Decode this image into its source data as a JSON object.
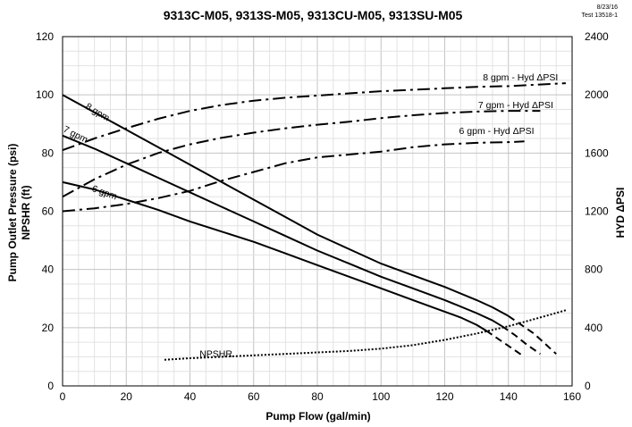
{
  "chart_data": {
    "type": "line",
    "title": "9313C-M05, 9313S-M05, 9313CU-M05, 9313SU-M05",
    "note_date": "8/23/16",
    "note_test": "Test 13518-1",
    "xlabel": "Pump Flow (gal/min)",
    "ylabel_left_1": "Pump Outlet Pressure (psi)",
    "ylabel_left_2": "NPSHR (ft)",
    "ylabel_right": "HYD ΔPSI",
    "xlim": [
      0,
      160
    ],
    "ylim_left": [
      0,
      120
    ],
    "ylim_right": [
      0,
      2400
    ],
    "xticks": [
      0,
      20,
      40,
      60,
      80,
      100,
      120,
      140,
      160
    ],
    "yticks_left": [
      0,
      20,
      40,
      60,
      80,
      100,
      120
    ],
    "yticks_right": [
      0,
      400,
      800,
      1200,
      1600,
      2000,
      2400
    ],
    "grid": true,
    "series": [
      {
        "name": "8 gpm",
        "axis": "left",
        "style": "solid",
        "x": [
          0,
          10,
          20,
          30,
          40,
          50,
          60,
          70,
          80,
          90,
          100,
          110,
          120,
          130,
          135,
          140
        ],
        "y": [
          100,
          94,
          88,
          82,
          76,
          70,
          64,
          58,
          52,
          47,
          42,
          38,
          34,
          29.5,
          27,
          24
        ],
        "dashed_x": [
          140,
          144,
          148,
          152,
          155
        ],
        "dashed_y": [
          24,
          21,
          18,
          14,
          11
        ]
      },
      {
        "name": "7 gpm",
        "axis": "left",
        "style": "solid",
        "x": [
          0,
          10,
          20,
          30,
          40,
          50,
          60,
          70,
          80,
          90,
          100,
          110,
          120,
          130,
          135,
          138
        ],
        "y": [
          86,
          81.5,
          76.5,
          71.5,
          66.5,
          61.5,
          56.5,
          51.5,
          46.5,
          42,
          37.5,
          33.5,
          29.5,
          25,
          22.5,
          20.5
        ],
        "dashed_x": [
          138,
          142,
          146,
          150
        ],
        "dashed_y": [
          20.5,
          17.5,
          14,
          11
        ]
      },
      {
        "name": "6 gpm",
        "axis": "left",
        "style": "solid",
        "x": [
          0,
          10,
          20,
          30,
          40,
          50,
          60,
          70,
          80,
          90,
          100,
          110,
          120,
          125,
          130,
          133
        ],
        "y": [
          70,
          67.5,
          64,
          60.5,
          56.5,
          53,
          49.5,
          45.5,
          41.5,
          37.5,
          33.5,
          29.5,
          25.5,
          23.5,
          21,
          19
        ],
        "dashed_x": [
          133,
          137,
          141,
          145
        ],
        "dashed_y": [
          19,
          16,
          13,
          10
        ]
      },
      {
        "name": "8 gpm - Hyd ΔPSI",
        "axis": "right",
        "style": "dashdot",
        "x": [
          0,
          10,
          20,
          30,
          40,
          50,
          60,
          70,
          80,
          90,
          100,
          110,
          120,
          130,
          140,
          158
        ],
        "y": [
          1620,
          1700,
          1770,
          1835,
          1890,
          1930,
          1960,
          1980,
          1995,
          2010,
          2025,
          2035,
          2045,
          2055,
          2060,
          2080
        ]
      },
      {
        "name": "7 gpm - Hyd ΔPSI",
        "axis": "right",
        "style": "dashdot",
        "x": [
          0,
          10,
          20,
          30,
          40,
          50,
          60,
          70,
          80,
          90,
          100,
          110,
          120,
          130,
          140,
          150
        ],
        "y": [
          1300,
          1420,
          1520,
          1600,
          1660,
          1705,
          1740,
          1770,
          1795,
          1815,
          1840,
          1860,
          1875,
          1885,
          1890,
          1890
        ]
      },
      {
        "name": "6 gpm - Hyd ΔPSI",
        "axis": "right",
        "style": "dashdot",
        "x": [
          0,
          10,
          20,
          30,
          40,
          50,
          60,
          70,
          80,
          90,
          100,
          110,
          120,
          130,
          140,
          145
        ],
        "y": [
          1200,
          1220,
          1250,
          1290,
          1340,
          1410,
          1470,
          1530,
          1570,
          1590,
          1610,
          1640,
          1660,
          1670,
          1675,
          1680
        ]
      },
      {
        "name": "NPSHR",
        "axis": "left",
        "style": "dotted",
        "x": [
          32,
          40,
          50,
          60,
          70,
          80,
          90,
          100,
          110,
          120,
          130,
          140,
          150,
          158
        ],
        "y": [
          9,
          9.5,
          10,
          10.5,
          11,
          11.5,
          12,
          12.8,
          14,
          15.8,
          18,
          20.5,
          23.5,
          26
        ]
      }
    ],
    "labels": [
      {
        "series": "8 gpm",
        "text": "8 gpm",
        "x": 7,
        "y": 95.5,
        "angle": 31
      },
      {
        "series": "7 gpm",
        "text": "7 gpm",
        "x": 0,
        "y": 87.5,
        "angle": 27
      },
      {
        "series": "6 gpm",
        "text": "6 gpm",
        "x": 9,
        "y": 67,
        "angle": 20
      },
      {
        "series": "8 gpm - Hyd ΔPSI",
        "text": "8 gpm - Hyd ΔPSI",
        "x": 132,
        "y": 105,
        "angle": 0
      },
      {
        "series": "7 gpm - Hyd ΔPSI",
        "text": "7 gpm - Hyd ΔPSI",
        "x": 130.5,
        "y": 95.5,
        "angle": 0
      },
      {
        "series": "6 gpm - Hyd ΔPSI",
        "text": "6 gpm - Hyd ΔPSI",
        "x": 124.5,
        "y": 86.5,
        "angle": 0
      },
      {
        "series": "NPSHR",
        "text": "NPSHR",
        "x": 43,
        "y": 10,
        "angle": 0
      }
    ]
  }
}
